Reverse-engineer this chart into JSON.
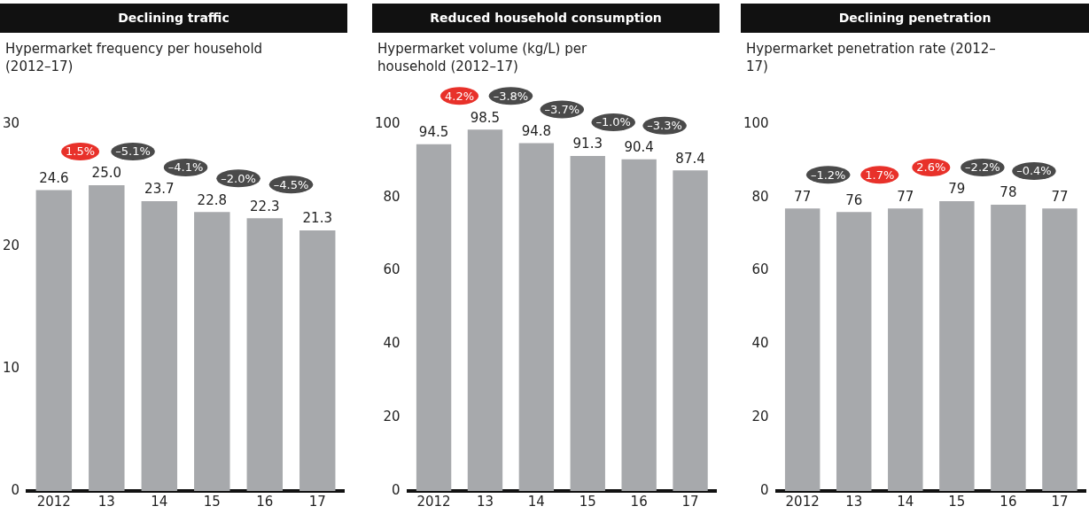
{
  "chart_data": [
    {
      "type": "bar",
      "title": "Declining traffic",
      "ylabel": "Hypermarket frequency per household (2012–17)",
      "categories": [
        "2012",
        "13",
        "14",
        "15",
        "16",
        "17"
      ],
      "values": [
        24.6,
        25.0,
        23.7,
        22.8,
        22.3,
        21.3
      ],
      "value_labels": [
        "24.6",
        "25.0",
        "23.7",
        "22.8",
        "22.3",
        "21.3"
      ],
      "color": "#a7a9ac",
      "ylim": [
        0,
        30
      ],
      "yticks": [
        0,
        10,
        20,
        30
      ],
      "grid": false,
      "annotations": [
        "1.5%",
        "–5.1%",
        "–4.1%",
        "–2.0%",
        "–4.5%"
      ]
    },
    {
      "type": "bar",
      "title": "Reduced household consumption",
      "ylabel": "Hypermarket volume (kg/L) per household (2012–17)",
      "categories": [
        "2012",
        "13",
        "14",
        "15",
        "16",
        "17"
      ],
      "values": [
        94.5,
        98.5,
        94.8,
        91.3,
        90.4,
        87.4
      ],
      "color": "#a7a9ac",
      "ylim": [
        0,
        100
      ],
      "yticks": [
        0,
        20,
        40,
        60,
        80,
        100
      ],
      "grid": false,
      "data_labels": true,
      "annotations": [
        "4.2%",
        "–3.8%",
        "–3.7%",
        "–1.0%",
        "–3.3%"
      ]
    },
    {
      "type": "bar",
      "title": "Declining penetration",
      "ylabel": "Hypermarket penetration rate (2012–17)",
      "categories": [
        "2012",
        "13",
        "14",
        "15",
        "16",
        "17"
      ],
      "values": [
        77,
        76,
        77,
        79,
        78,
        77
      ],
      "color": "#a7a9ac",
      "ylim": [
        0,
        100
      ],
      "yticks": [
        0,
        20,
        40,
        60,
        80,
        100
      ],
      "grid": false,
      "data_labels": true,
      "annotations": [
        "–1.2%",
        "1.7%",
        "2.6%",
        "–2.2%",
        "–0.4%"
      ]
    }
  ]
}
